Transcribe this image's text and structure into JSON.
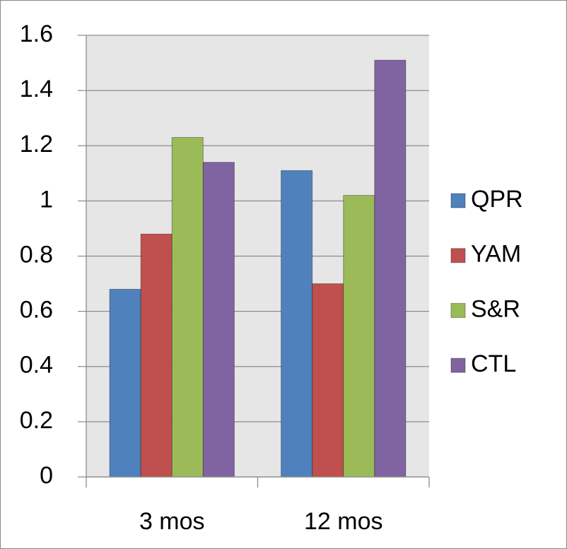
{
  "chart_data": {
    "type": "bar",
    "categories": [
      "3 mos",
      "12 mos"
    ],
    "series": [
      {
        "name": "QPR",
        "color": "#4f81bd",
        "values": [
          0.68,
          1.11
        ]
      },
      {
        "name": "YAM",
        "color": "#c0504d",
        "values": [
          0.88,
          0.7
        ]
      },
      {
        "name": "S&R",
        "color": "#9bbb59",
        "values": [
          1.23,
          1.02
        ]
      },
      {
        "name": "CTL",
        "color": "#8064a2",
        "values": [
          1.14,
          1.51
        ]
      }
    ],
    "ylim": [
      0,
      1.6
    ],
    "yticks": [
      0,
      0.2,
      0.4,
      0.6,
      0.8,
      1,
      1.2,
      1.4,
      1.6
    ],
    "grid": true,
    "legend": "right"
  }
}
